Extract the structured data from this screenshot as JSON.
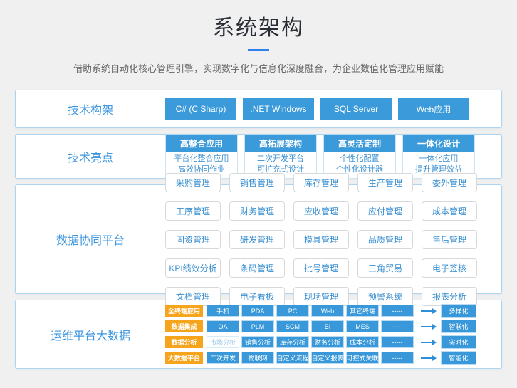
{
  "page": {
    "title": "系统架构",
    "subtitle": "借助系统自动化核心管理引擎，实现数字化与信息化深度融合，为企业数值化管理应用赋能"
  },
  "colors": {
    "accent_blue": "#3b9ad9",
    "label_blue": "#3f97e0",
    "underline_blue": "#2f80ed",
    "tag_orange": "#f7a41d",
    "panel_border": "#aed5f0",
    "page_background": "#f0f0f1"
  },
  "sections": {
    "tech_framework": {
      "label": "技术构架",
      "buttons": [
        "C# (C Sharp)",
        ".NET Windows",
        "SQL Server",
        "Web应用"
      ]
    },
    "tech_highlights": {
      "label": "技术亮点",
      "cards": [
        {
          "title": "高整合应用",
          "lines": [
            "平台化整合应用",
            "高效协同作业"
          ]
        },
        {
          "title": "高拓展架构",
          "lines": [
            "二次开发平台",
            "可扩充式设计"
          ]
        },
        {
          "title": "高灵活定制",
          "lines": [
            "个性化配置",
            "个性化设计器"
          ]
        },
        {
          "title": "一体化设计",
          "lines": [
            "一体化应用",
            "提升管理效益"
          ]
        }
      ]
    },
    "data_platform": {
      "label": "数据协同平台",
      "items": [
        "采购管理",
        "销售管理",
        "库存管理",
        "生产管理",
        "委外管理",
        "工序管理",
        "财务管理",
        "应收管理",
        "应付管理",
        "成本管理",
        "固资管理",
        "研发管理",
        "模具管理",
        "品质管理",
        "售后管理",
        "KPI绩效分析",
        "条码管理",
        "批号管理",
        "三角贸易",
        "电子签核",
        "文档管理",
        "电子看板",
        "现场管理",
        "预警系统",
        "报表分析"
      ]
    },
    "ops_bigdata": {
      "label": "运维平台大数据",
      "rows": [
        {
          "tag": "全终端应用",
          "cells": [
            "手机",
            "PDA",
            "PC",
            "Web",
            "其它终端",
            "-----"
          ],
          "result": "多样化"
        },
        {
          "tag": "数据集成",
          "cells": [
            "OA",
            "PLM",
            "SCM",
            "BI",
            "MES",
            "-----"
          ],
          "result": "智联化"
        },
        {
          "tag": "数据分析",
          "cells": [
            "市场分析",
            "销售分析",
            "库存分析",
            "财务分析",
            "成本分析",
            "-----"
          ],
          "result": "实时化"
        },
        {
          "tag": "大数据平台",
          "cells": [
            "二次开发",
            "物联网",
            "自定义流程",
            "自定义报表",
            "可控式关联",
            "-----"
          ],
          "result": "智能化"
        }
      ]
    }
  }
}
